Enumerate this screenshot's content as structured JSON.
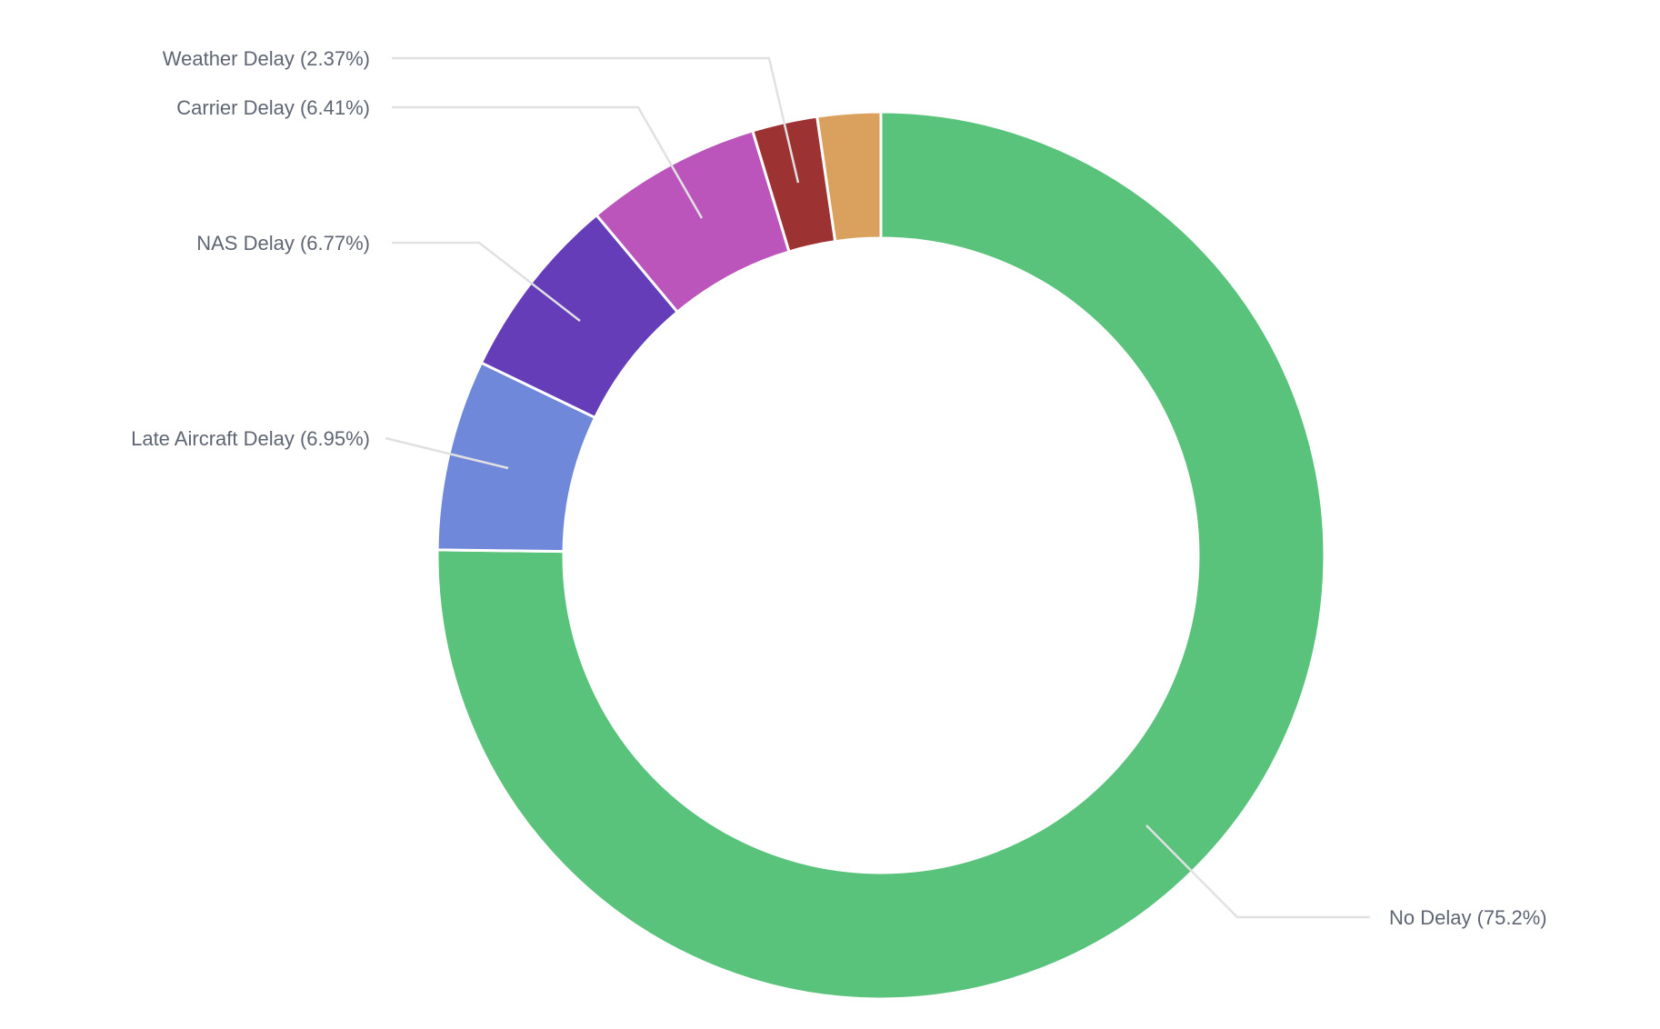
{
  "chart_data": {
    "type": "pie",
    "donut": true,
    "title": "",
    "slices": [
      {
        "name": "No Delay",
        "label": "No Delay (75.2%)",
        "value": 75.2,
        "color": "#59c27b"
      },
      {
        "name": "Late Aircraft Delay",
        "label": "Late Aircraft Delay (6.95%)",
        "value": 6.95,
        "color": "#6f88d9"
      },
      {
        "name": "NAS Delay",
        "label": "NAS Delay (6.77%)",
        "value": 6.77,
        "color": "#653db8"
      },
      {
        "name": "Carrier Delay",
        "label": "Carrier Delay (6.41%)",
        "value": 6.41,
        "color": "#bb55bb"
      },
      {
        "name": "Weather Delay",
        "label": "Weather Delay (2.37%)",
        "value": 2.37,
        "color": "#9c3231"
      },
      {
        "name": "",
        "label": "",
        "value": 2.3,
        "color": "#d9a15d"
      }
    ]
  }
}
